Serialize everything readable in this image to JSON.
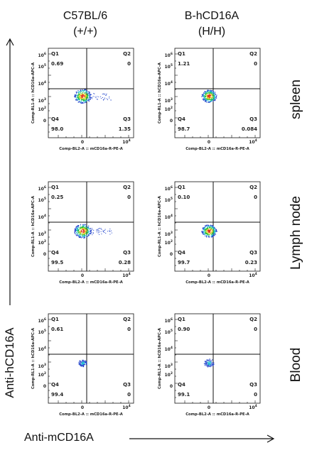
{
  "columns": [
    {
      "line1": "C57BL/6",
      "line2": "(+/+)"
    },
    {
      "line1": "B-hCD16A",
      "line2": "(H/H)"
    }
  ],
  "rows": [
    "spleen",
    "Lymph node",
    "Blood"
  ],
  "axis": {
    "y_label": "Anti-hCD16A",
    "x_label": "Anti-mCD16A",
    "panel_x_label": "Comp-BL2-A :: mCD16a-R-PE-A",
    "panel_y_label": "Comp-RL1-A :: hCD16a-APC-A"
  },
  "quadrant_names": [
    "Q1",
    "Q2",
    "Q3",
    "Q4"
  ],
  "panels": [
    {
      "row": "spleen",
      "column": "C57BL/6 (+/+)",
      "Q1": "0.69",
      "Q2": "0",
      "Q3": "1.35",
      "Q4": "98.0"
    },
    {
      "row": "spleen",
      "column": "B-hCD16A (H/H)",
      "Q1": "1.21",
      "Q2": "0",
      "Q3": "0.084",
      "Q4": "98.7"
    },
    {
      "row": "Lymph node",
      "column": "C57BL/6 (+/+)",
      "Q1": "0.25",
      "Q2": "0",
      "Q3": "0.28",
      "Q4": "99.5"
    },
    {
      "row": "Lymph node",
      "column": "B-hCD16A (H/H)",
      "Q1": "0.10",
      "Q2": "0",
      "Q3": "0.23",
      "Q4": "99.7"
    },
    {
      "row": "Blood",
      "column": "C57BL/6 (+/+)",
      "Q1": "0.61",
      "Q2": "0",
      "Q3": "0",
      "Q4": "99.4"
    },
    {
      "row": "Blood",
      "column": "B-hCD16A (H/H)",
      "Q1": "0.90",
      "Q2": "0",
      "Q3": "0",
      "Q4": "99.1"
    }
  ],
  "colors": {
    "line": "#111111",
    "dot_blue": "#2244cc",
    "dot_cyan": "#22c0d0",
    "dot_green": "#22bb33",
    "dot_yellow": "#e0d020",
    "dot_red": "#e03020"
  }
}
